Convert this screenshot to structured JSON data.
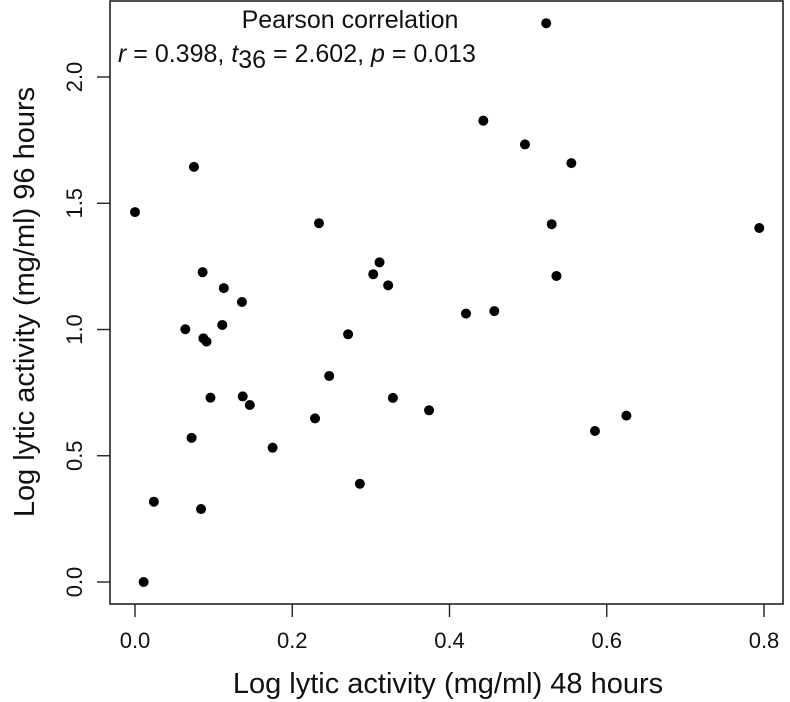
{
  "chart_data": {
    "type": "scatter",
    "title": "",
    "xlabel": "Log lytic activity (mg/ml) 48 hours",
    "ylabel": "Log lytic activity (mg/ml) 96 hours",
    "xlim": [
      -0.03,
      0.825
    ],
    "ylim": [
      -0.088,
      2.3
    ],
    "xticks": [
      0.0,
      0.2,
      0.4,
      0.6,
      0.8
    ],
    "xtick_labels": [
      "0.0",
      "0.2",
      "0.4",
      "0.6",
      "0.8"
    ],
    "yticks": [
      0.0,
      0.5,
      1.0,
      1.5,
      2.0
    ],
    "ytick_labels": [
      "0.0",
      "0.5",
      "1.0",
      "1.5",
      "2.0"
    ],
    "grid": false,
    "legend": null,
    "marker": {
      "shape": "circle",
      "color": "#000000",
      "radius": 5
    },
    "annotation": {
      "line1": "Pearson correlation",
      "r_symbol": "r",
      "r_value": " = 0.398, ",
      "t_symbol": "t",
      "t_df": "36",
      "t_value": " = 2.602, ",
      "p_symbol": "p",
      "p_value": " = 0.013"
    },
    "statistics": {
      "r": 0.398,
      "t": 2.602,
      "df": 36,
      "p": 0.013,
      "n": 38
    },
    "points": [
      {
        "x": 0.0,
        "y": 1.465
      },
      {
        "x": 0.075,
        "y": 1.644
      },
      {
        "x": 0.086,
        "y": 1.227
      },
      {
        "x": 0.113,
        "y": 1.164
      },
      {
        "x": 0.136,
        "y": 1.109
      },
      {
        "x": 0.064,
        "y": 1.001
      },
      {
        "x": 0.087,
        "y": 0.965
      },
      {
        "x": 0.091,
        "y": 0.952
      },
      {
        "x": 0.111,
        "y": 1.018
      },
      {
        "x": 0.096,
        "y": 0.73
      },
      {
        "x": 0.137,
        "y": 0.735
      },
      {
        "x": 0.146,
        "y": 0.701
      },
      {
        "x": 0.072,
        "y": 0.571
      },
      {
        "x": 0.175,
        "y": 0.532
      },
      {
        "x": 0.024,
        "y": 0.318
      },
      {
        "x": 0.084,
        "y": 0.289
      },
      {
        "x": 0.011,
        "y": 0.0
      },
      {
        "x": 0.234,
        "y": 1.421
      },
      {
        "x": 0.311,
        "y": 1.266
      },
      {
        "x": 0.303,
        "y": 1.219
      },
      {
        "x": 0.322,
        "y": 1.175
      },
      {
        "x": 0.271,
        "y": 0.981
      },
      {
        "x": 0.247,
        "y": 0.816
      },
      {
        "x": 0.229,
        "y": 0.648
      },
      {
        "x": 0.328,
        "y": 0.729
      },
      {
        "x": 0.286,
        "y": 0.389
      },
      {
        "x": 0.374,
        "y": 0.68
      },
      {
        "x": 0.421,
        "y": 1.063
      },
      {
        "x": 0.457,
        "y": 1.073
      },
      {
        "x": 0.523,
        "y": 2.213
      },
      {
        "x": 0.443,
        "y": 1.827
      },
      {
        "x": 0.496,
        "y": 1.733
      },
      {
        "x": 0.555,
        "y": 1.659
      },
      {
        "x": 0.53,
        "y": 1.417
      },
      {
        "x": 0.536,
        "y": 1.212
      },
      {
        "x": 0.585,
        "y": 0.598
      },
      {
        "x": 0.625,
        "y": 0.659
      },
      {
        "x": 0.794,
        "y": 1.402
      }
    ]
  }
}
